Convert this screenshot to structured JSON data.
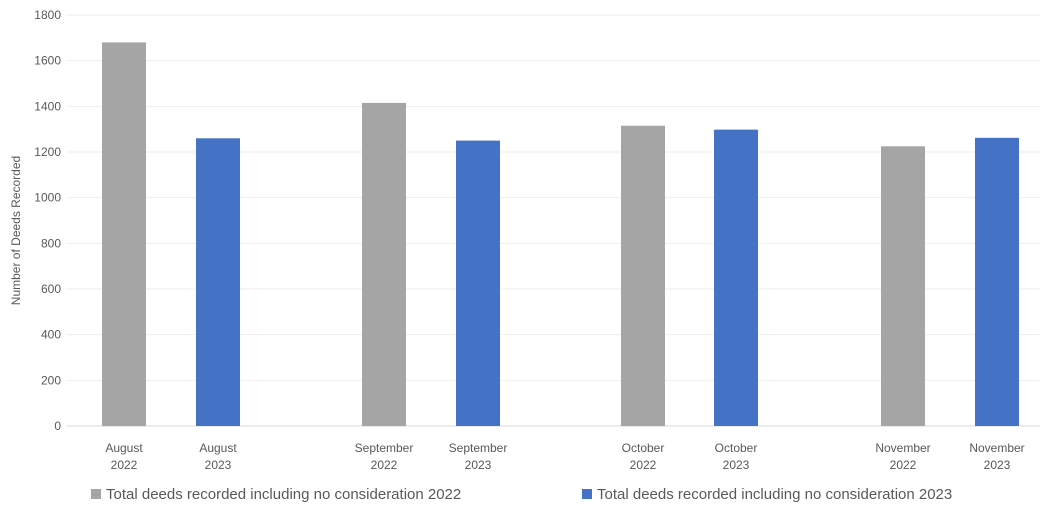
{
  "chart_data": {
    "type": "bar",
    "title": "",
    "xlabel": "",
    "ylabel": "Number of Deeds Recorded",
    "ylim": [
      0,
      1800
    ],
    "yticks": [
      0,
      200,
      400,
      600,
      800,
      1000,
      1200,
      1400,
      1600,
      1800
    ],
    "grid": true,
    "legend_position": "bottom",
    "categories": [
      [
        "August",
        "2022"
      ],
      [
        "August",
        "2023"
      ],
      [
        "September",
        "2022"
      ],
      [
        "September",
        "2023"
      ],
      [
        "October",
        "2022"
      ],
      [
        "October",
        "2023"
      ],
      [
        "November",
        "2022"
      ],
      [
        "November",
        "2023"
      ]
    ],
    "series": [
      {
        "name": "Total deeds recorded including no consideration 2022",
        "color": "#a5a5a5",
        "values": [
          1680,
          null,
          1415,
          null,
          1315,
          null,
          1225,
          null
        ]
      },
      {
        "name": "Total deeds recorded including no consideration 2023",
        "color": "#4472c4",
        "values": [
          null,
          1260,
          null,
          1250,
          null,
          1298,
          null,
          1262
        ]
      }
    ]
  }
}
